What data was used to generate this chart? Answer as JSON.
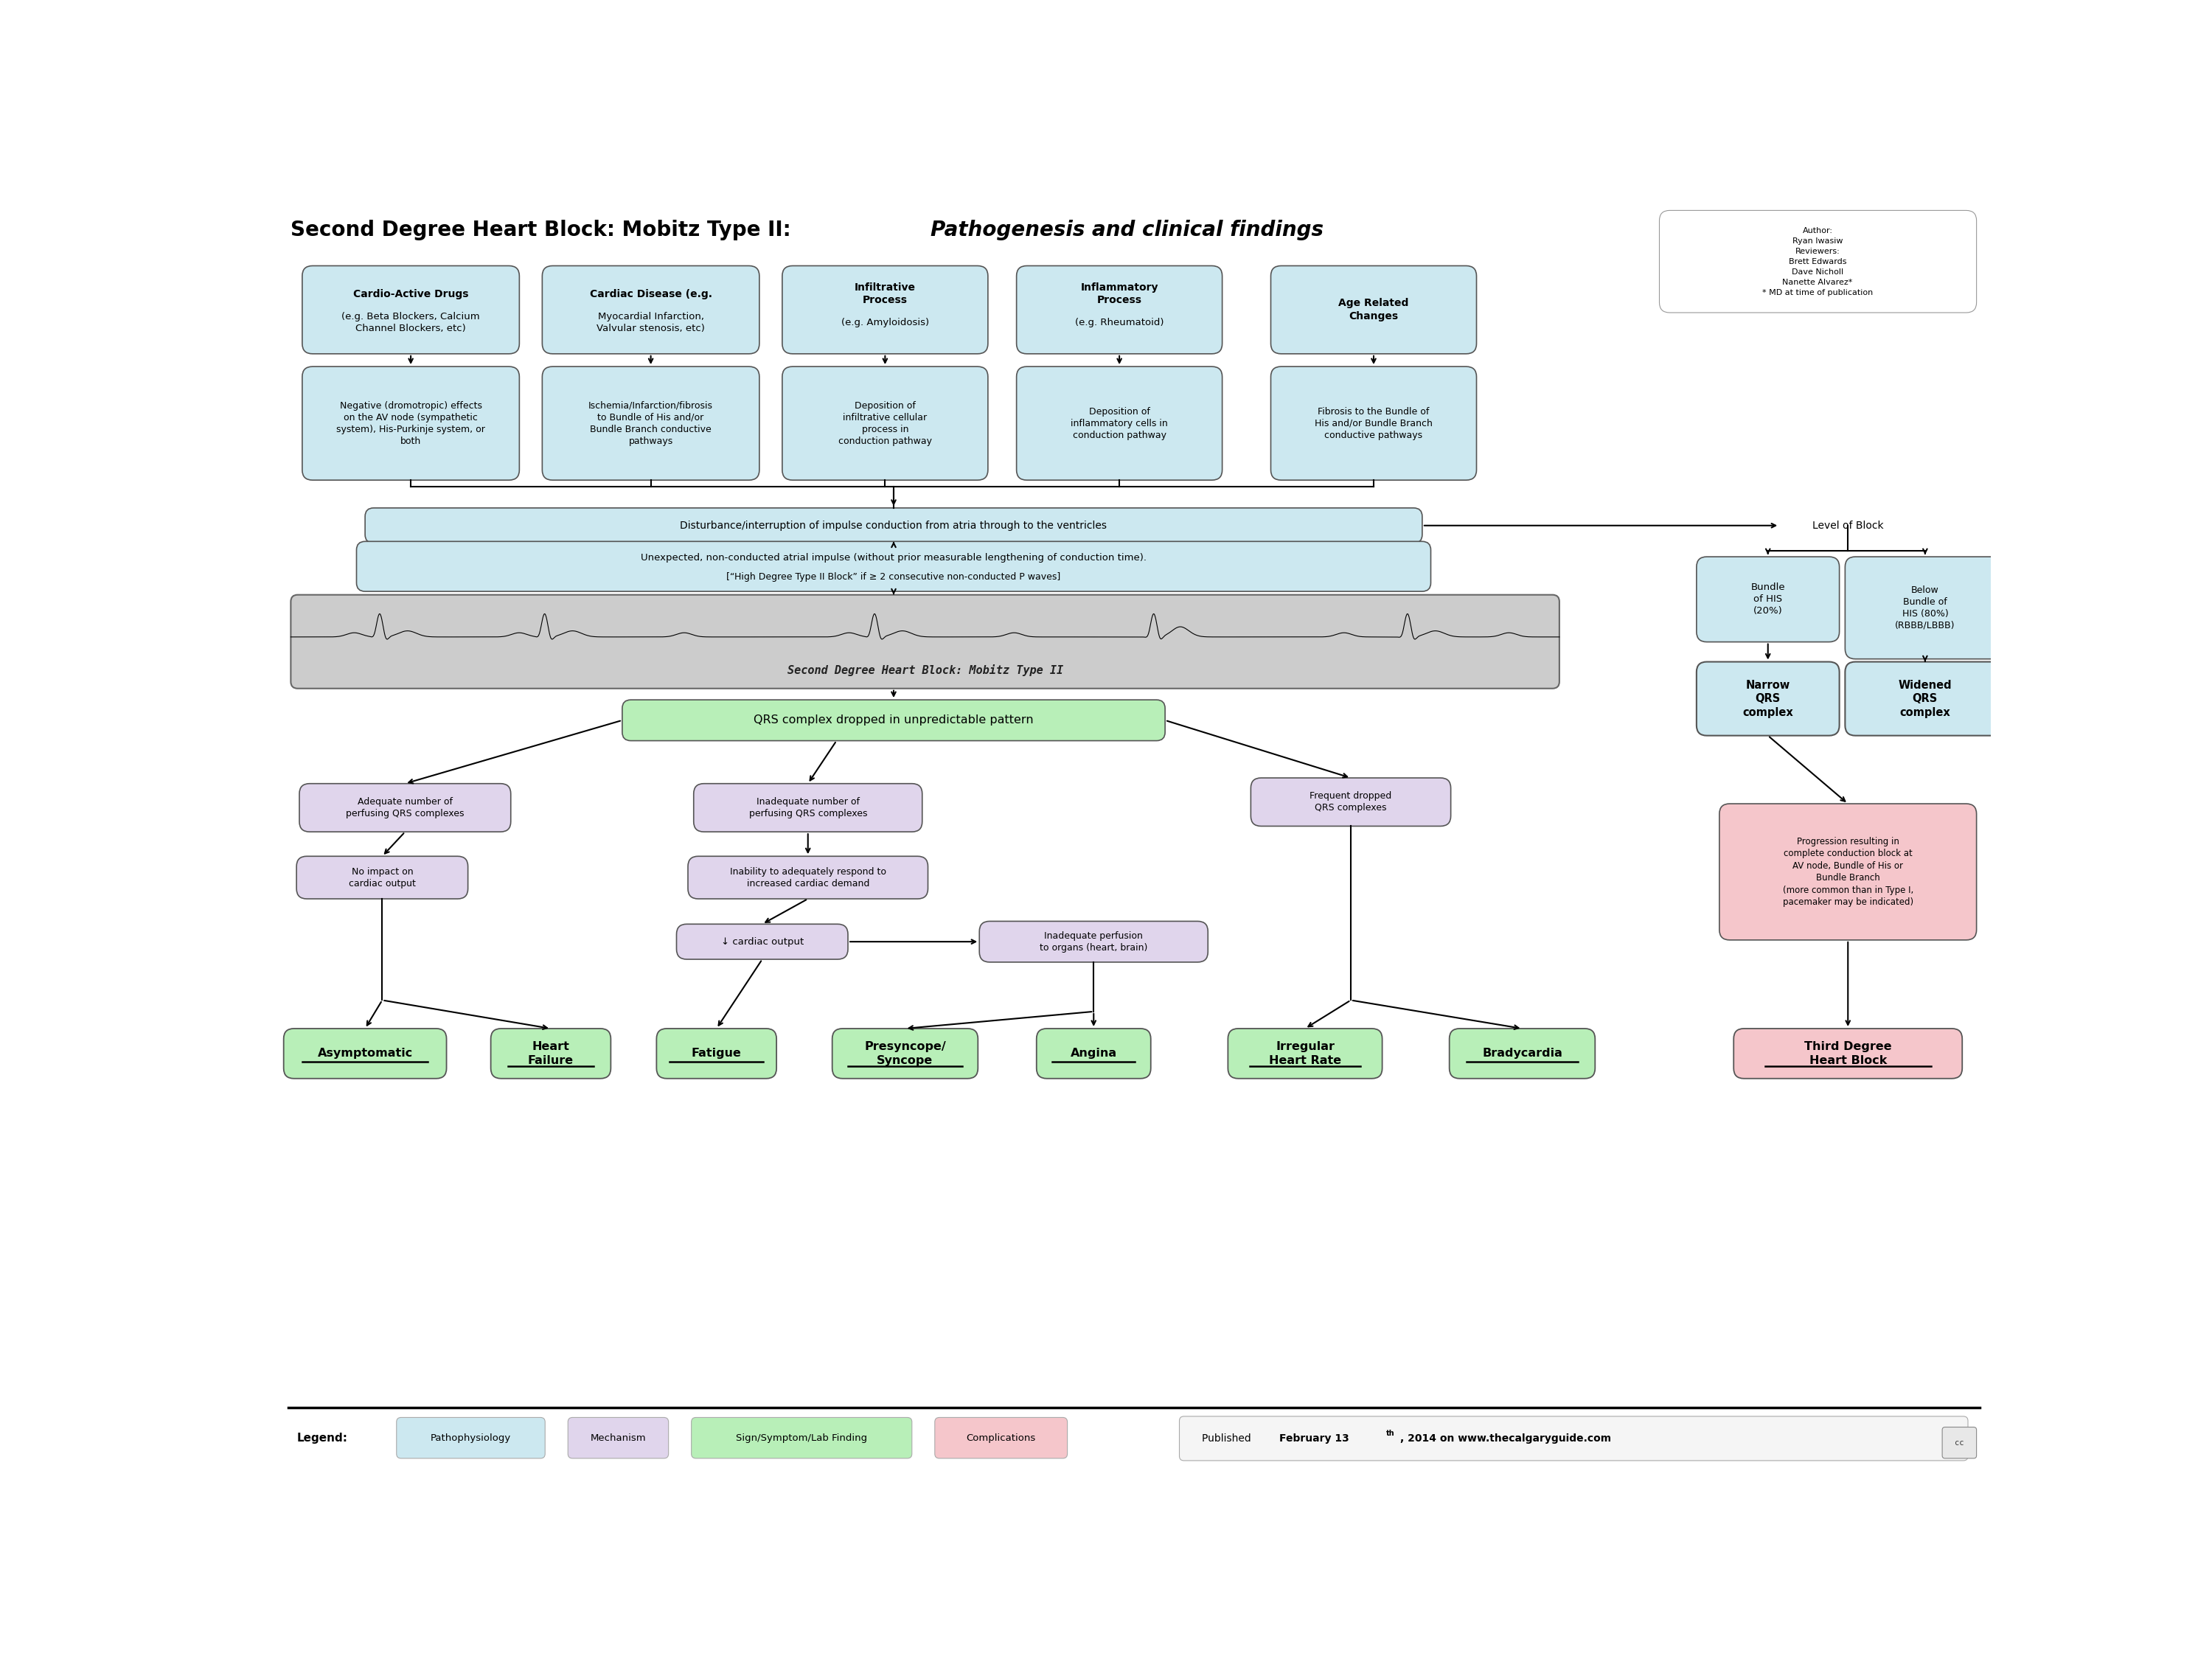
{
  "title_bold": "Second Degree Heart Block: Mobitz Type II: ",
  "title_italic": "Pathogenesis and clinical findings",
  "bg_color": "#ffffff",
  "light_blue": "#cce8f0",
  "light_purple": "#e0d5ec",
  "light_green": "#b8efb8",
  "light_pink": "#f5c6cb",
  "ecg_bg": "#cccccc",
  "author_text": "Author:\nRyan Iwasiw\nReviewers:\nBrett Edwards\nDave Nicholl\nNanette Alvarez*\n* MD at time of publication",
  "legend_items": [
    {
      "label": "Pathophysiology",
      "color": "#cce8f0"
    },
    {
      "label": "Mechanism",
      "color": "#e0d5ec"
    },
    {
      "label": "Sign/Symptom/Lab Finding",
      "color": "#b8efb8"
    },
    {
      "label": "Complications",
      "color": "#f5c6cb"
    }
  ]
}
